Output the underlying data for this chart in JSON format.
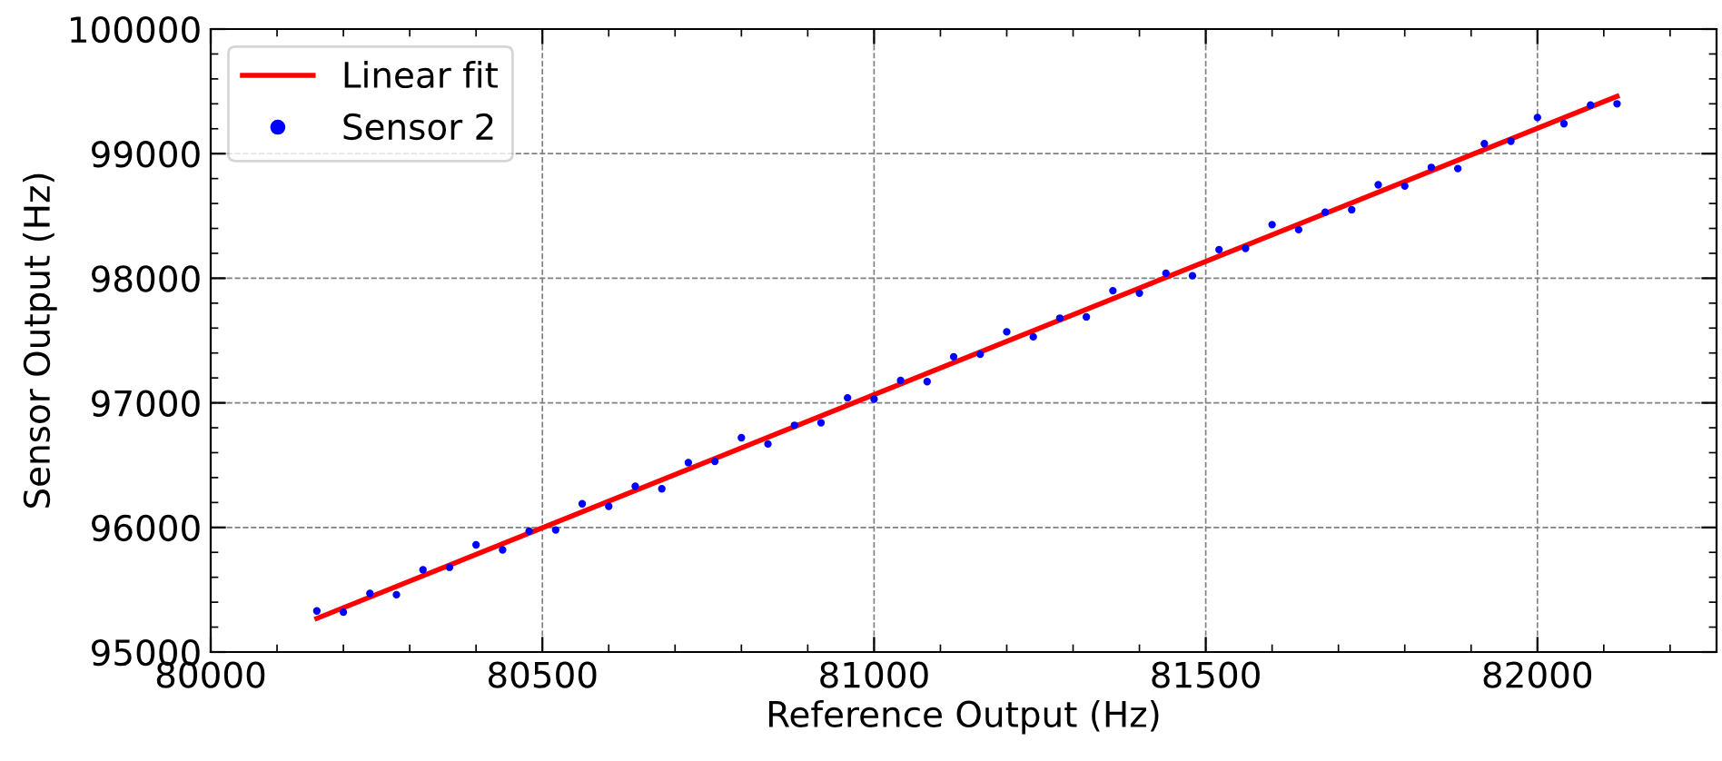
{
  "chart_data": {
    "type": "scatter",
    "xlabel": "Reference Output (Hz)",
    "ylabel": "Sensor Output (Hz)",
    "xlim": [
      80000,
      82270
    ],
    "xticks": [
      80000,
      80500,
      81000,
      81500,
      82000
    ],
    "ylim": [
      95000,
      100000
    ],
    "yticks": [
      95000,
      96000,
      97000,
      98000,
      99000,
      100000
    ],
    "grid": true,
    "legend": "top left",
    "series": [
      {
        "name": "Linear fit",
        "type": "line",
        "color": "#ff0000",
        "line_style": "solid",
        "marker": "none",
        "x": [
          80160,
          82120
        ],
        "values": [
          95270,
          99460
        ]
      },
      {
        "name": "Sensor 2",
        "color": "#0000ff",
        "marker": "circle",
        "x": [
          80160,
          80200,
          80240,
          80280,
          80320,
          80360,
          80400,
          80440,
          80480,
          80520,
          80560,
          80600,
          80640,
          80680,
          80720,
          80760,
          80800,
          80840,
          80880,
          80920,
          80960,
          81000,
          81040,
          81080,
          81120,
          81160,
          81200,
          81240,
          81280,
          81320,
          81360,
          81400,
          81440,
          81480,
          81520,
          81560,
          81600,
          81640,
          81680,
          81720,
          81760,
          81800,
          81840,
          81880,
          81920,
          81960,
          82000,
          82040,
          82080,
          82120
        ],
        "values": [
          95330,
          95320,
          95470,
          95460,
          95660,
          95680,
          95860,
          95820,
          95970,
          95980,
          96190,
          96170,
          96330,
          96310,
          96520,
          96530,
          96720,
          96670,
          96820,
          96840,
          97040,
          97030,
          97180,
          97170,
          97370,
          97390,
          97570,
          97530,
          97680,
          97690,
          97900,
          97880,
          98040,
          98020,
          98230,
          98240,
          98430,
          98390,
          98530,
          98550,
          98750,
          98740,
          98890,
          98880,
          99080,
          99100,
          99290,
          99240,
          99390,
          99400
        ]
      }
    ]
  }
}
